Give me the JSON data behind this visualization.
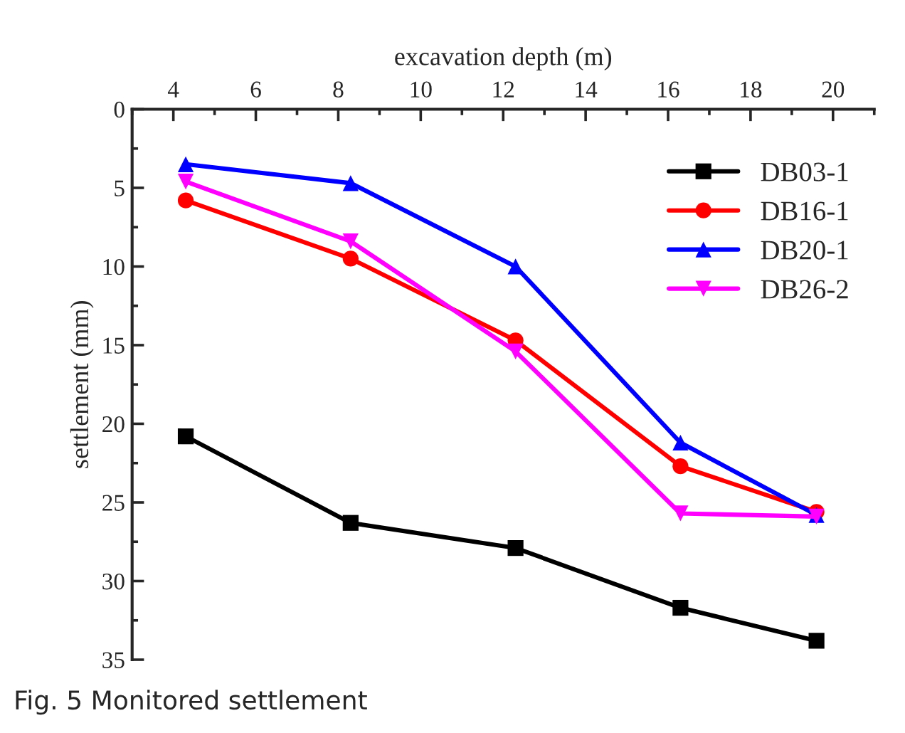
{
  "chart_data": {
    "type": "line",
    "xlabel": "excavation depth (m)",
    "ylabel": "settlement (mm)",
    "x": [
      4.3,
      8.3,
      12.3,
      16.3,
      19.6
    ],
    "series": [
      {
        "name": "DB03-1",
        "color": "#000000",
        "marker": "square",
        "values": [
          20.8,
          26.3,
          27.9,
          31.7,
          33.8
        ]
      },
      {
        "name": "DB16-1",
        "color": "#ff0000",
        "marker": "circle",
        "values": [
          5.8,
          9.5,
          14.7,
          22.7,
          25.6
        ]
      },
      {
        "name": "DB20-1",
        "color": "#0000ff",
        "marker": "triangle",
        "values": [
          3.5,
          4.7,
          10.0,
          21.2,
          25.8
        ]
      },
      {
        "name": "DB26-2",
        "color": "#ff00ff",
        "marker": "triangle_down",
        "values": [
          4.6,
          8.4,
          15.4,
          25.7,
          25.9
        ]
      }
    ],
    "xlim": [
      3,
      21
    ],
    "xticks": [
      4,
      6,
      8,
      10,
      12,
      14,
      16,
      18,
      20
    ],
    "ylim": [
      35,
      0
    ],
    "yticks": [
      0,
      5,
      10,
      15,
      20,
      25,
      30,
      35
    ],
    "grid": false,
    "legend": "top right",
    "line_style": "solid",
    "annotations": [
      "Fig. 5 Monitored settlement"
    ]
  }
}
